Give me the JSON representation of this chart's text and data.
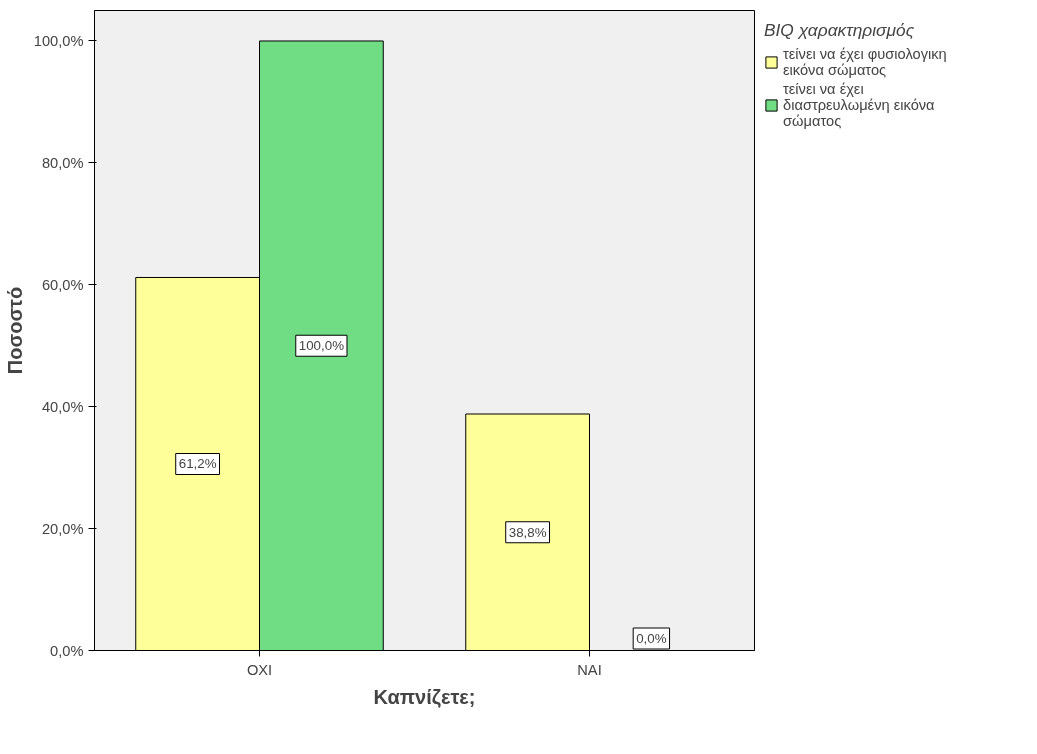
{
  "chart_data": {
    "type": "bar",
    "xlabel": "Καπνίζετε;",
    "ylabel": "Ποσοστό",
    "legend_title": "BIQ χαρακτηρισμός",
    "categories": [
      "ΟΧΙ",
      "ΝΑΙ"
    ],
    "series": [
      {
        "name": "τείνει να έχει φυσιολογικη εικόνα σώματος",
        "color": "#ffff9a",
        "values": [
          61.2,
          38.8
        ],
        "value_labels": [
          "61,2%",
          "38,8%"
        ]
      },
      {
        "name": "τείνει να έχει διαστρευλωμένη εικόνα σώματος",
        "color": "#70dc84",
        "values": [
          100.0,
          0.0
        ],
        "value_labels": [
          "100,0%",
          "0,0%"
        ]
      }
    ],
    "ylim": [
      0,
      105
    ],
    "yticks": [
      {
        "value": 0,
        "label": "0,0%"
      },
      {
        "value": 20,
        "label": "20,0%"
      },
      {
        "value": 40,
        "label": "40,0%"
      },
      {
        "value": 60,
        "label": "60,0%"
      },
      {
        "value": 80,
        "label": "80,0%"
      },
      {
        "value": 100,
        "label": "100,0%"
      }
    ],
    "grid": false,
    "legend": "right"
  }
}
